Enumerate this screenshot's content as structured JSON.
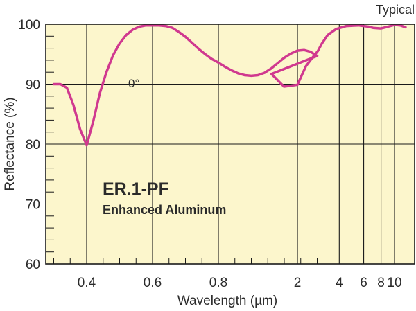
{
  "chart_data": {
    "type": "line",
    "xlabel": "Wavelength (µm)",
    "ylabel": "Reflectance (%)",
    "corner_note": "Typical",
    "product_name": "ER.1-PF",
    "product_subtitle": "Enhanced Aluminum",
    "series_annotation": "0°",
    "ylim": [
      60,
      100
    ],
    "y_ticks": [
      "60",
      "70",
      "80",
      "90",
      "100"
    ],
    "x_ticks": [
      "0.4",
      "0.6",
      "0.8",
      "2",
      "4",
      "6",
      "8",
      "10"
    ],
    "x_scale": "linear 0.3–1.1 µm, then logarithmic 1–12 µm",
    "grid": true,
    "colors": {
      "plot_background": "#fcf6cc",
      "curve": "#d0398f",
      "grid": "#1a1a1a"
    },
    "series": [
      {
        "x": [
          0.3,
          0.32,
          0.34,
          0.36,
          0.38,
          0.4,
          0.42,
          0.44,
          0.46,
          0.48,
          0.5,
          0.52,
          0.54,
          0.56,
          0.58,
          0.6,
          0.62,
          0.64,
          0.66,
          0.68,
          0.7,
          0.72,
          0.74,
          0.76,
          0.78,
          0.8,
          0.82,
          0.84,
          0.86,
          0.88,
          0.9,
          0.92,
          0.94,
          0.96,
          0.98,
          1.0,
          1.02,
          1.04,
          1.06,
          1.08,
          1.1,
          1.3,
          1.6,
          2.0,
          2.3,
          2.6,
          2.8,
          3.0,
          3.3,
          3.8,
          4.5,
          5.5,
          6.5,
          7.0,
          8.0,
          9.0,
          10.0,
          11.0,
          12.0
        ],
        "values": [
          90.0,
          90.0,
          89.4,
          86.5,
          82.5,
          79.8,
          83.8,
          88.5,
          92.0,
          94.8,
          96.8,
          98.2,
          99.1,
          99.6,
          99.8,
          99.8,
          99.8,
          99.7,
          99.4,
          98.7,
          97.9,
          96.9,
          95.9,
          95.0,
          94.2,
          93.6,
          92.9,
          92.3,
          91.8,
          91.5,
          91.4,
          91.5,
          91.9,
          92.6,
          93.5,
          94.4,
          95.1,
          95.6,
          95.7,
          95.4,
          94.7,
          91.7,
          89.6,
          89.9,
          93.0,
          94.6,
          95.5,
          96.8,
          98.2,
          99.2,
          99.7,
          99.8,
          99.6,
          99.4,
          99.3,
          99.6,
          99.9,
          99.8,
          99.5
        ]
      }
    ]
  }
}
